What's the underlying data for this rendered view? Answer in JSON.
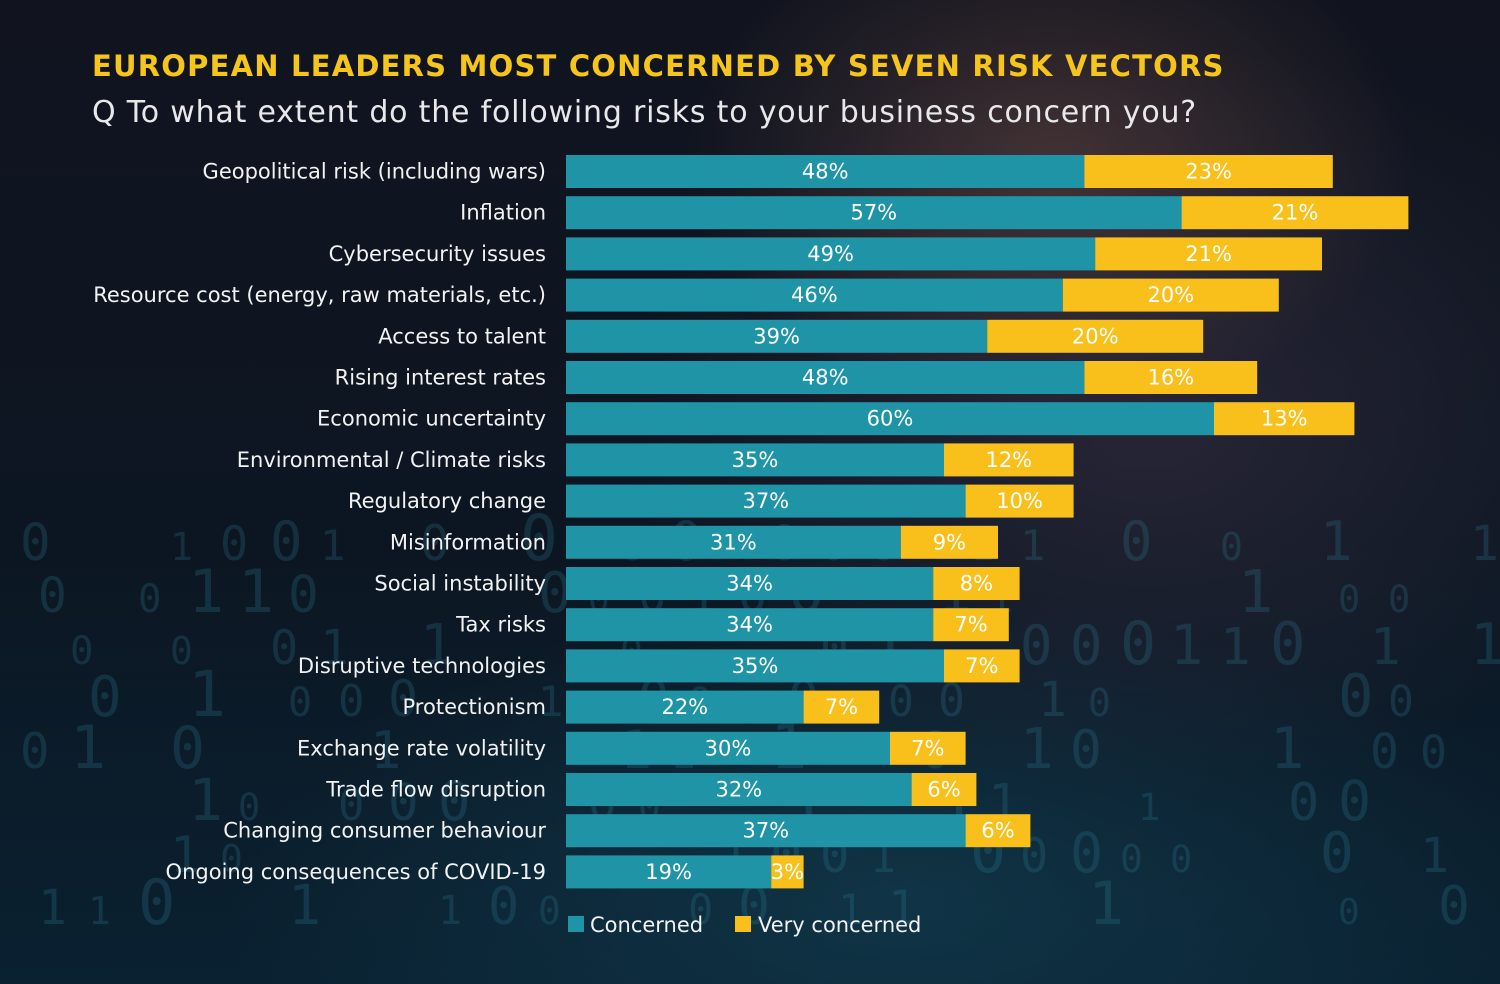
{
  "colors": {
    "concerned": "#1f94a7",
    "very_concerned": "#f9bf1b",
    "title": "#f6c51c"
  },
  "header": {
    "title": "EUROPEAN LEADERS MOST CONCERNED BY SEVEN RISK VECTORS",
    "subtitle": "Q To what extent do the following risks to your business concern you?"
  },
  "chart_data": {
    "type": "bar",
    "orientation": "horizontal",
    "stacked": true,
    "categories": [
      "Geopolitical risk (including wars)",
      "Inflation",
      "Cybersecurity issues",
      "Resource cost (energy, raw materials, etc.)",
      "Access to talent",
      "Rising interest rates",
      "Economic uncertainty",
      "Environmental / Climate risks",
      "Regulatory change",
      "Misinformation",
      "Social instability",
      "Tax risks",
      "Disruptive technologies",
      "Protectionism",
      "Exchange rate volatility",
      "Trade flow disruption",
      "Changing consumer behaviour",
      "Ongoing consequences of COVID-19"
    ],
    "series": [
      {
        "name": "Concerned",
        "values": [
          48,
          57,
          49,
          46,
          39,
          48,
          60,
          35,
          37,
          31,
          34,
          34,
          35,
          22,
          30,
          32,
          37,
          19
        ],
        "labels": [
          "48%",
          "57%",
          "49%",
          "46%",
          "39%",
          "48%",
          "60%",
          "35%",
          "37%",
          "31%",
          "34%",
          "34%",
          "35%",
          "22%",
          "30%",
          "32%",
          "37%",
          "19%"
        ]
      },
      {
        "name": "Very concerned",
        "values": [
          23,
          21,
          21,
          20,
          20,
          16,
          13,
          12,
          10,
          9,
          8,
          7,
          7,
          7,
          7,
          6,
          6,
          3
        ],
        "labels": [
          "23%",
          "21%",
          "21%",
          "20%",
          "20%",
          "16%",
          "13%",
          "12%",
          "10%",
          "9%",
          "8%",
          "7%",
          "7%",
          "7%",
          "7%",
          "6%",
          "6%",
          "3%"
        ]
      }
    ],
    "unit": "%",
    "legend": [
      "Concerned",
      "Very concerned"
    ],
    "legend_position": "bottom",
    "xlim": [
      0,
      78
    ],
    "grid": false
  }
}
